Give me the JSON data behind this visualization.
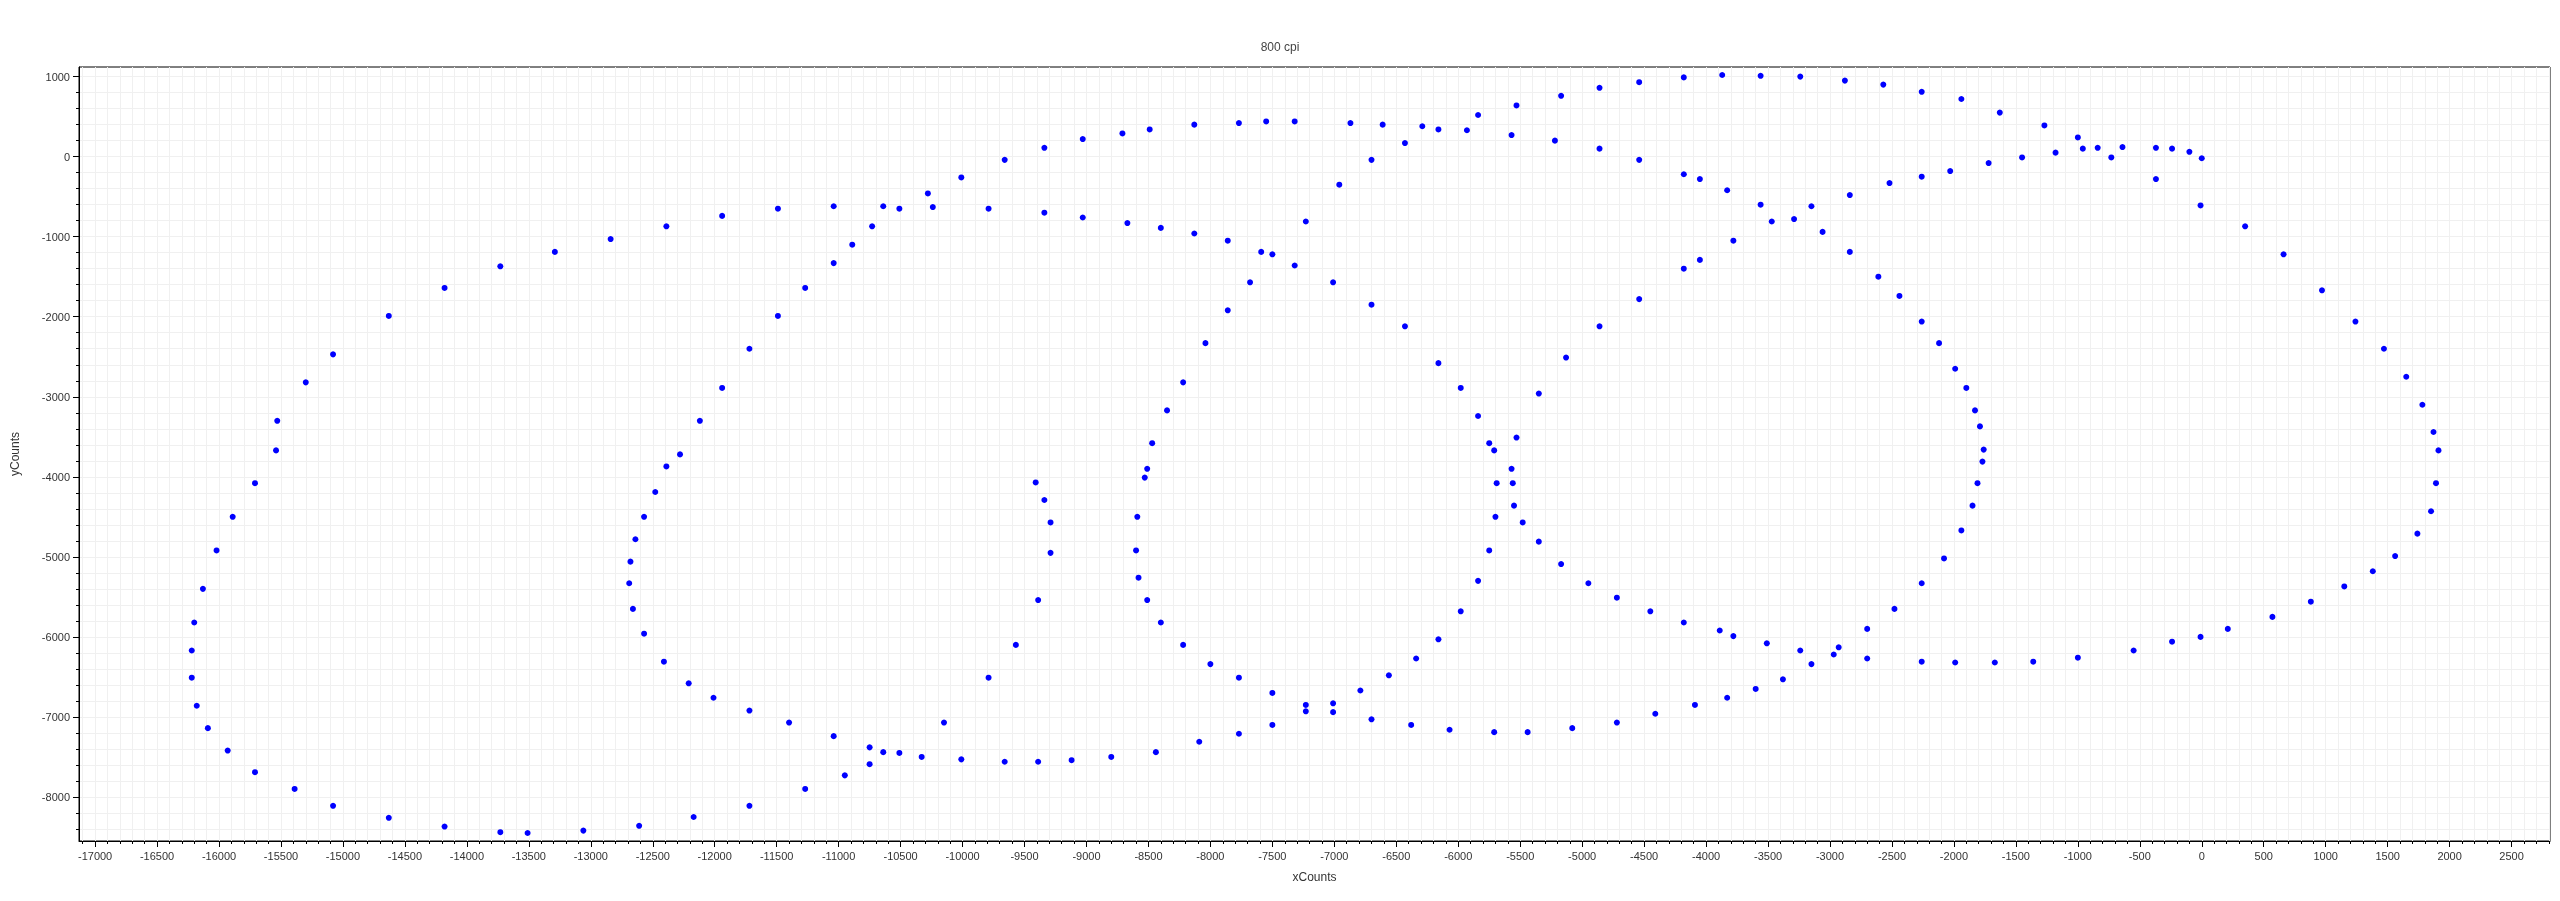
{
  "chart_data": {
    "type": "scatter",
    "subtitle": "800 cpi",
    "xlabel": "xCounts",
    "ylabel": "yCounts",
    "color": "#0000ff",
    "marker": "circle",
    "grid": true,
    "xlim": [
      -17130,
      2810
    ],
    "ylim": [
      -8550,
      1120
    ],
    "xticks": [
      -17000,
      -16500,
      -16000,
      -15500,
      -15000,
      -14500,
      -14000,
      -13500,
      -13000,
      -12500,
      -12000,
      -11500,
      -11000,
      -10500,
      -10000,
      -9500,
      -9000,
      -8500,
      -8000,
      -7500,
      -7000,
      -6500,
      -6000,
      -5500,
      -5000,
      -4500,
      -4000,
      -3500,
      -3000,
      -2500,
      -2000,
      -1500,
      -1000,
      -500,
      0,
      500,
      1000,
      1500,
      2000,
      2500
    ],
    "yticks": [
      -8000,
      -7000,
      -6000,
      -5000,
      -4000,
      -3000,
      -2000,
      -1000,
      0,
      1000
    ],
    "x": [
      0,
      -100,
      -240,
      -370,
      -640,
      -840,
      -960,
      -1180,
      -1450,
      -1720,
      -2030,
      -2260,
      -2520,
      -2840,
      -3150,
      -3470,
      -3780,
      -4050,
      -4180,
      -4540,
      -4860,
      -5130,
      -5350,
      -5530,
      -5570,
      -5560,
      -5550,
      -5480,
      -5350,
      -5170,
      -4950,
      -4720,
      -4450,
      -4180,
      -3890,
      -3780,
      -3510,
      -3240,
      -2970,
      -2700,
      -2260,
      -1990,
      -1670,
      -1360,
      -1000,
      -550,
      -240,
      -10,
      210,
      570,
      880,
      1150,
      1380,
      1560,
      1740,
      1850,
      1890,
      1910,
      1870,
      1780,
      1650,
      1470,
      1240,
      970,
      660,
      350,
      -10,
      -370,
      -730,
      -1000,
      -1270,
      -1630,
      -1940,
      -2260,
      -2570,
      -2880,
      -3240,
      -3560,
      -3870,
      -4180,
      -4540,
      -4860,
      -5170,
      -5530,
      -5840,
      -6160,
      -6430,
      -6700,
      -6960,
      -7230,
      -7500,
      -7680,
      -7860,
      -8040,
      -8220,
      -8350,
      -8470,
      -8510,
      -8530,
      -8590,
      -8600,
      -8580,
      -8510,
      -8400,
      -8220,
      -8000,
      -7770,
      -7500,
      -7230,
      -7010,
      -6700,
      -6380,
      -6070,
      -5710,
      -5440,
      -5080,
      -4720,
      -4410,
      -4090,
      -3830,
      -3600,
      -3380,
      -3150,
      -2930,
      -2700,
      -2480,
      -2260,
      -2080,
      -1940,
      -1850,
      -1810,
      -1770,
      -1760,
      -1790,
      -1830,
      -1900,
      -1990,
      -2120,
      -2260,
      -2440,
      -2610,
      -2840,
      -3060,
      -3290,
      -3560,
      -3830,
      -4050,
      -4180,
      -4540,
      -4860,
      -5220,
      -5570,
      -5930,
      -6290,
      -6610,
      -6870,
      -7320,
      -7550,
      -7770,
      -8130,
      -8490,
      -8710,
      -9030,
      -9340,
      -9660,
      -10010,
      -10280,
      -10510,
      -10730,
      -10890,
      -11040,
      -11270,
      -11490,
      -11720,
      -11940,
      -12120,
      -12280,
      -12390,
      -12480,
      -12570,
      -12640,
      -12680,
      -12690,
      -12660,
      -12570,
      -12410,
      -12210,
      -12010,
      -11720,
      -11400,
      -11040,
      -10750,
      -10640,
      -10330,
      -10010,
      -9660,
      -9390,
      -9120,
      -8800,
      -8440,
      -8090,
      -7770,
      -7500,
      -7230,
      -7010,
      -6790,
      -6560,
      -6340,
      -6160,
      -5980,
      -5840,
      -5750,
      -5700,
      -5690,
      -5710,
      -5750,
      -5840,
      -5980,
      -6160,
      -6430,
      -6700,
      -7010,
      -7320,
      -7590,
      -7860,
      -8130,
      -8400,
      -8670,
      -9030,
      -9340,
      -9790,
      -10240,
      -10640,
      -11040,
      -11490,
      -11940,
      -12390,
      -12840,
      -13290,
      -13730,
      -14180,
      -14630,
      -15080,
      -15300,
      -15530,
      -15540,
      -15710,
      -15890,
      -16020,
      -16130,
      -16200,
      -16220,
      -16220,
      -16180,
      -16090,
      -15930,
      -15710,
      -15390,
      -15080,
      -14630,
      -14180,
      -13730,
      -13510,
      -13060,
      -12610,
      -12170,
      -11720,
      -11270,
      -10950,
      -10750,
      -10510,
      -10150,
      -9790,
      -9570,
      -9390,
      -9290,
      -9290,
      -9340,
      -9410
    ],
    "values": [
      -20,
      60,
      100,
      110,
      120,
      110,
      100,
      50,
      -10,
      -80,
      -180,
      -250,
      -330,
      -480,
      -620,
      -810,
      -1050,
      -1290,
      -1400,
      -1780,
      -2120,
      -2510,
      -2960,
      -3510,
      -3900,
      -4080,
      -4360,
      -4570,
      -4810,
      -5090,
      -5330,
      -5510,
      -5680,
      -5820,
      -5920,
      -5990,
      -6080,
      -6170,
      -6220,
      -6270,
      -6310,
      -6320,
      -6320,
      -6310,
      -6260,
      -6170,
      -6060,
      -6000,
      -5900,
      -5750,
      -5560,
      -5370,
      -5180,
      -4990,
      -4710,
      -4430,
      -4080,
      -3670,
      -3440,
      -3100,
      -2750,
      -2400,
      -2060,
      -1670,
      -1220,
      -870,
      -610,
      -280,
      -10,
      240,
      390,
      550,
      720,
      810,
      900,
      950,
      1000,
      1010,
      1020,
      990,
      930,
      860,
      760,
      640,
      520,
      340,
      170,
      -40,
      -350,
      -810,
      -1220,
      -1570,
      -1920,
      -2330,
      -2820,
      -3170,
      -3580,
      -3900,
      -4010,
      -4500,
      -4920,
      -5260,
      -5540,
      -5820,
      -6100,
      -6340,
      -6510,
      -6700,
      -6850,
      -6940,
      -7030,
      -7100,
      -7160,
      -7190,
      -7190,
      -7140,
      -7070,
      -6960,
      -6850,
      -6760,
      -6650,
      -6530,
      -6340,
      -6130,
      -5900,
      -5650,
      -5330,
      -5020,
      -4670,
      -4360,
      -4080,
      -3810,
      -3660,
      -3370,
      -3170,
      -2890,
      -2650,
      -2330,
      -2060,
      -1740,
      -1500,
      -1190,
      -940,
      -780,
      -600,
      -420,
      -280,
      -220,
      -40,
      100,
      200,
      270,
      330,
      380,
      400,
      420,
      440,
      440,
      420,
      400,
      340,
      290,
      220,
      110,
      -40,
      -260,
      -460,
      -650,
      -870,
      -1100,
      -1330,
      -1640,
      -1990,
      -2400,
      -2890,
      -3300,
      -3720,
      -3870,
      -4190,
      -4500,
      -4780,
      -5060,
      -5330,
      -5650,
      -5960,
      -6310,
      -6580,
      -6760,
      -6920,
      -7070,
      -7240,
      -7380,
      -7440,
      -7500,
      -7530,
      -7560,
      -7560,
      -7540,
      -7500,
      -7440,
      -7310,
      -7210,
      -7100,
      -6930,
      -6830,
      -6670,
      -6480,
      -6270,
      -6030,
      -5680,
      -5300,
      -4920,
      -4500,
      -4080,
      -3670,
      -3580,
      -3240,
      -2890,
      -2580,
      -2120,
      -1850,
      -1570,
      -1360,
      -1190,
      -1050,
      -960,
      -890,
      -830,
      -760,
      -700,
      -650,
      -630,
      -620,
      -620,
      -650,
      -740,
      -870,
      -1030,
      -1190,
      -1370,
      -1640,
      -1990,
      -2470,
      -2820,
      -3300,
      -3670,
      -4080,
      -4500,
      -4920,
      -5400,
      -5820,
      -6170,
      -6510,
      -6860,
      -7140,
      -7420,
      -7690,
      -7900,
      -8110,
      -8260,
      -8370,
      -8440,
      -8450,
      -8420,
      -8360,
      -8250,
      -8110,
      -7900,
      -7730,
      -7590,
      -7450,
      -7070,
      -6510,
      -6100,
      -5540,
      -4950,
      -4570,
      -4290,
      -4070
    ]
  }
}
